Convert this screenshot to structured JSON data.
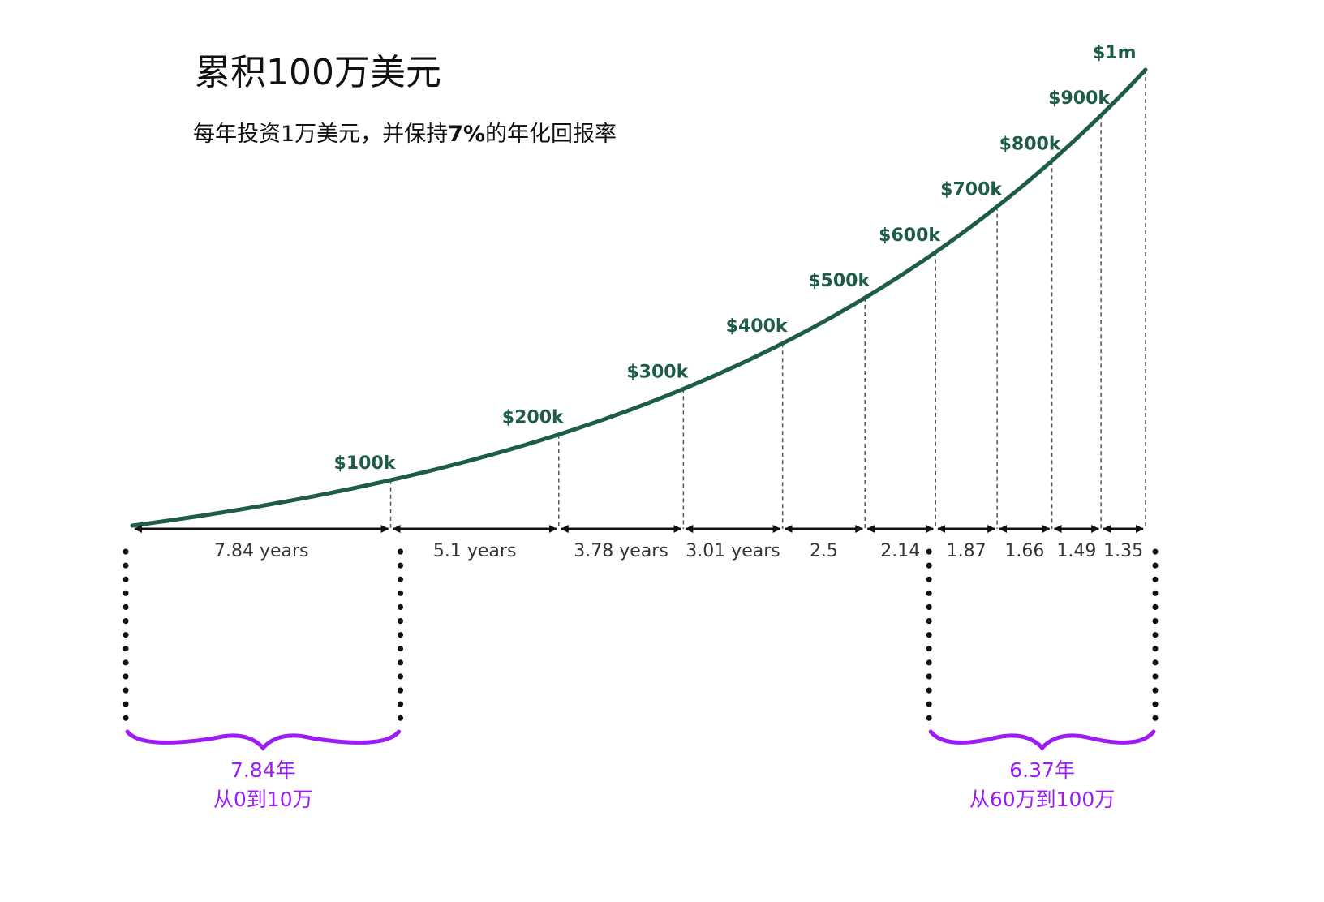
{
  "chart_data": {
    "type": "line",
    "title": "累积100万美元",
    "subtitle_prefix": "每年投资1万美元，并保持",
    "subtitle_bold": "7%",
    "subtitle_suffix": "的年化回报率",
    "milestones": [
      {
        "label": "$100k",
        "years": 7.84
      },
      {
        "label": "$200k",
        "years": 12.94
      },
      {
        "label": "$300k",
        "years": 16.72
      },
      {
        "label": "$400k",
        "years": 19.73
      },
      {
        "label": "$500k",
        "years": 22.23
      },
      {
        "label": "$600k",
        "years": 24.37
      },
      {
        "label": "$700k",
        "years": 26.24
      },
      {
        "label": "$800k",
        "years": 27.9
      },
      {
        "label": "$900k",
        "years": 29.39
      },
      {
        "label": "$1m",
        "years": 30.74
      }
    ],
    "intervals": [
      "7.84 years",
      "5.1 years",
      "3.78 years",
      "3.01 years",
      "2.5",
      "2.14",
      "1.87",
      "1.66",
      "1.49",
      "1.35"
    ],
    "annotations": [
      {
        "line1": "7.84年",
        "line2": "从0到10万",
        "from": 0,
        "to": 1
      },
      {
        "line1": "6.37年",
        "line2": "从60万到100万",
        "from": 6,
        "to": 10
      }
    ],
    "colors": {
      "curve": "#1e5c4a",
      "labels": "#1e5c4a",
      "annotation": "#9b1cf5",
      "arrows": "#111111"
    }
  }
}
